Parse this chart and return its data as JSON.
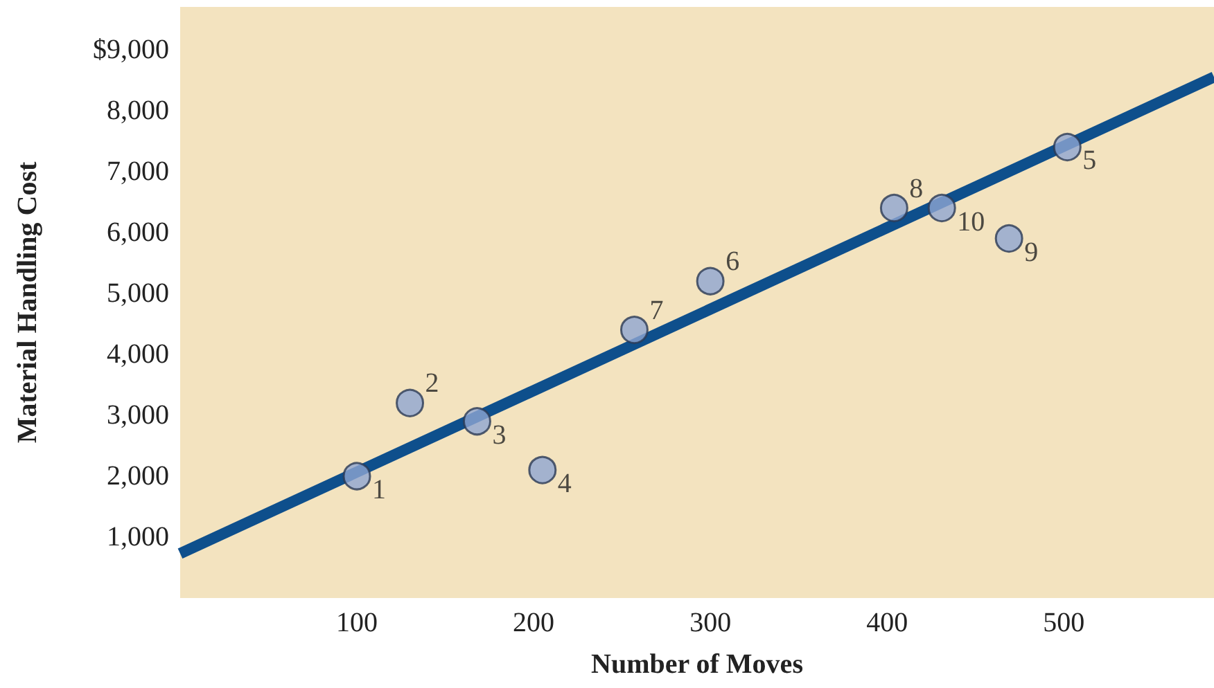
{
  "chart_data": {
    "type": "scatter",
    "xlabel": "Number of Moves",
    "ylabel": "Material Handling Cost",
    "xlim": [
      0,
      585
    ],
    "ylim": [
      0,
      9700
    ],
    "xticks": [
      100,
      200,
      300,
      400,
      500
    ],
    "yticks": [
      {
        "value": 1000,
        "label": "1,000"
      },
      {
        "value": 2000,
        "label": "2,000"
      },
      {
        "value": 3000,
        "label": "3,000"
      },
      {
        "value": 4000,
        "label": "4,000"
      },
      {
        "value": 5000,
        "label": "5,000"
      },
      {
        "value": 6000,
        "label": "6,000"
      },
      {
        "value": 7000,
        "label": "7,000"
      },
      {
        "value": 8000,
        "label": "8,000"
      },
      {
        "value": 9000,
        "label": "$9,000"
      }
    ],
    "grid": false,
    "marker": "circle",
    "series": [
      {
        "color": "#8fa5d2",
        "x": [
          100,
          130,
          168,
          205,
          502,
          300,
          257,
          404,
          469,
          431
        ],
        "values": [
          2000,
          3200,
          2900,
          2100,
          7400,
          5200,
          4400,
          6400,
          5900,
          6400
        ]
      },
      {
        "type": "line",
        "color": "#0e4f8c",
        "line_style": "solid",
        "marker": "none",
        "x": [
          0,
          585
        ],
        "values": [
          730,
          8550
        ]
      }
    ],
    "annotations": [
      {
        "text": "1",
        "x": 100,
        "y": 2000
      },
      {
        "text": "2",
        "x": 130,
        "y": 3200
      },
      {
        "text": "3",
        "x": 168,
        "y": 2900
      },
      {
        "text": "4",
        "x": 205,
        "y": 2100
      },
      {
        "text": "5",
        "x": 502,
        "y": 7400
      },
      {
        "text": "6",
        "x": 300,
        "y": 5200
      },
      {
        "text": "7",
        "x": 257,
        "y": 4400
      },
      {
        "text": "8",
        "x": 404,
        "y": 6400
      },
      {
        "text": "9",
        "x": 469,
        "y": 5900
      },
      {
        "text": "10",
        "x": 431,
        "y": 6400
      }
    ]
  }
}
